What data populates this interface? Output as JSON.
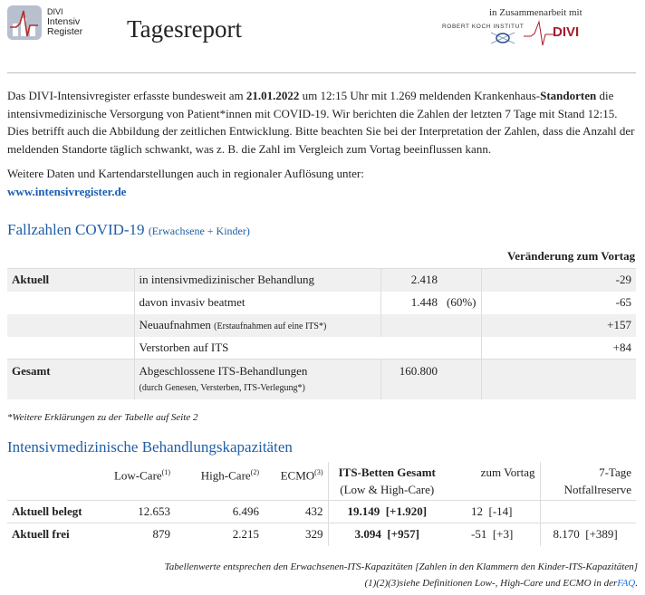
{
  "header": {
    "logo_lines": [
      "DIVI",
      "Intensiv",
      "Register"
    ],
    "title": "Tagesreport",
    "cooperation": "in Zusammenarbeit mit",
    "partner1": "ROBERT KOCH INSTITUT",
    "partner2": "DIVI"
  },
  "intro": {
    "p1a": "Das DIVI-Intensivregister erfasste bundesweit am ",
    "date": "21.01.2022",
    "p1b": " um 12:15 Uhr mit 1.269 meldenden Krankenhaus-",
    "standorte": "Standorten",
    "p1c": " die intensivmedizinische Versorgung von Patient*innen mit COVID-19. Wir berichten die Zahlen der letzten 7 Tage mit Stand 12:15. Dies betrifft auch die Abbildung der zeitlichen Entwicklung. Bitte beachten Sie bei der Interpretation der Zahlen, dass die Anzahl der meldenden Standorte täglich schwankt, was z. B. die Zahl im Vergleich zum Vortag beeinflussen kann.",
    "more": "Weitere Daten und Kartendarstellungen auch in regionaler Auflösung unter:",
    "link": "www.intensivregister.de"
  },
  "cases": {
    "heading": "Fallzahlen COVID-19",
    "heading_sub": "(Erwachsene + Kinder)",
    "change_header": "Veränderung zum Vortag",
    "rows": [
      {
        "group": "Aktuell",
        "label": "in intensivmedizinischer Behandlung",
        "sub": "",
        "value": "2.418",
        "pct": "",
        "change": "-29"
      },
      {
        "group": "",
        "label": "davon invasiv beatmet",
        "sub": "",
        "value": "1.448",
        "pct": "(60%)",
        "change": "-65"
      },
      {
        "group": "",
        "label": "Neuaufnahmen",
        "sub": "(Erstaufnahmen auf eine ITS*)",
        "value": "",
        "pct": "",
        "change": "+157"
      },
      {
        "group": "",
        "label": "Verstorben auf ITS",
        "sub": "",
        "value": "",
        "pct": "",
        "change": "+84"
      },
      {
        "group": "Gesamt",
        "label": "Abgeschlossene ITS-Behandlungen",
        "sub": "(durch Genesen, Versterben, ITS-Verlegung*)",
        "value": "160.800",
        "pct": "",
        "change": ""
      }
    ],
    "footnote": "*Weitere Erklärungen zu der Tabelle auf Seite 2"
  },
  "capacity": {
    "heading": "Intensivmedizinische Behandlungskapazitäten",
    "headers": {
      "low": "Low-Care",
      "low_sup": "(1)",
      "high": "High-Care",
      "high_sup": "(2)",
      "ecmo": "ECMO",
      "ecmo_sup": "(3)",
      "its": "ITS-Betten Gesamt",
      "its_sub": "(Low & High-Care)",
      "vortag": "zum Vortag",
      "reserve": "7-Tage",
      "reserve_sub": "Notfallreserve"
    },
    "rows": [
      {
        "label": "Aktuell belegt",
        "low": "12.653",
        "high": "6.496",
        "ecmo": "432",
        "its": "19.149  [+1.920]",
        "vortag": "12  [-14]",
        "reserve": ""
      },
      {
        "label": "Aktuell frei",
        "low": "879",
        "high": "2.215",
        "ecmo": "329",
        "its": "3.094  [+957]",
        "vortag": "-51  [+3]",
        "reserve": "8.170  [+389]"
      }
    ],
    "note1": "Tabellenwerte entsprechen den Erwachsenen-ITS-Kapazitäten [Zahlen in den Klammern den Kinder-ITS-Kapazitäten]",
    "note2": "(1)(2)(3)siehe Definitionen Low-, High-Care und ECMO in der",
    "faq": "FAQ",
    "note2_end": "."
  },
  "colors": {
    "heading": "#1f5fa6",
    "link": "#1a5fb4",
    "row_shade": "#f0f0f0",
    "divi_red": "#a51d2d"
  }
}
